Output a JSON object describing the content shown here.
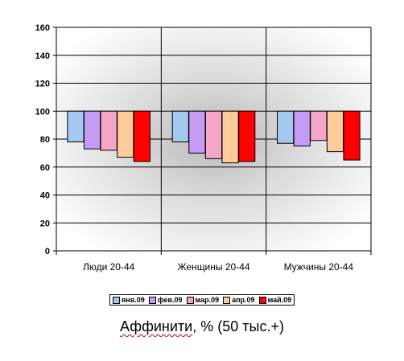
{
  "chart_data": {
    "type": "bar",
    "baseline": 100,
    "ylim": [
      0,
      160
    ],
    "yticks": [
      0,
      20,
      40,
      60,
      80,
      100,
      120,
      140,
      160
    ],
    "grid": true,
    "legend_position": "bottom",
    "categories": [
      "Люди 20-44",
      "Женщины 20-44",
      "Мужчины 20-44"
    ],
    "series": [
      {
        "name": "янв.09",
        "color": "#a5c8f0",
        "values": [
          78,
          78,
          77
        ]
      },
      {
        "name": "фев.09",
        "color": "#c59cf5",
        "values": [
          73,
          70,
          75
        ]
      },
      {
        "name": "мар.09",
        "color": "#f5a6c8",
        "values": [
          72,
          66,
          79
        ]
      },
      {
        "name": "апр.09",
        "color": "#fccc9a",
        "values": [
          67,
          63,
          71
        ]
      },
      {
        "name": "май.09",
        "color": "#ff0000",
        "values": [
          64,
          64,
          65
        ]
      }
    ]
  },
  "caption": {
    "word": "Аффинити",
    "rest": ", % (50 тыс.+)"
  }
}
